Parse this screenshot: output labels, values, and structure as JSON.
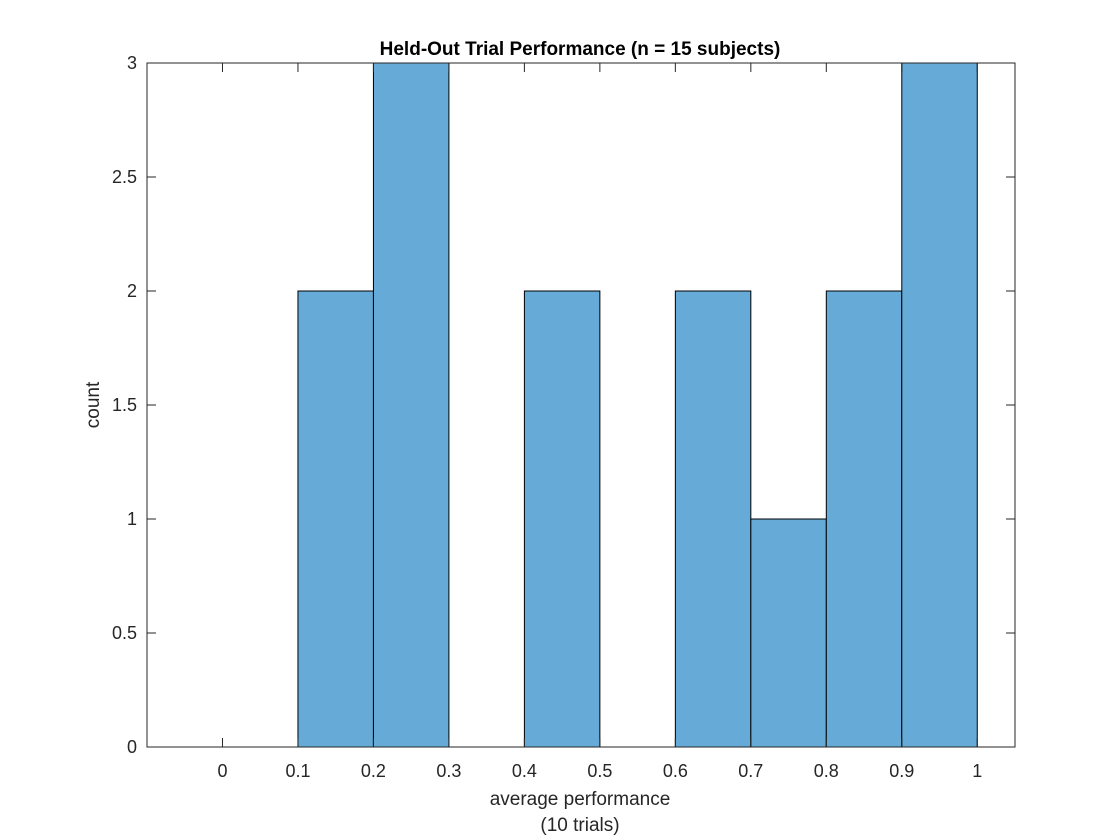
{
  "chart_data": {
    "type": "bar",
    "title": "Held-Out Trial Performance (n = 15 subjects)",
    "xlabel": [
      "average performance",
      "(10 trials)"
    ],
    "ylabel": "count",
    "bins": [
      {
        "from": 0.1,
        "to": 0.2,
        "count": 2
      },
      {
        "from": 0.2,
        "to": 0.3,
        "count": 3
      },
      {
        "from": 0.4,
        "to": 0.5,
        "count": 2
      },
      {
        "from": 0.6,
        "to": 0.7,
        "count": 2
      },
      {
        "from": 0.7,
        "to": 0.8,
        "count": 1
      },
      {
        "from": 0.8,
        "to": 0.9,
        "count": 2
      },
      {
        "from": 0.9,
        "to": 1.0,
        "count": 3
      }
    ],
    "xlim": [
      -0.1,
      1.05
    ],
    "ylim": [
      0,
      3
    ],
    "xticks": [
      0,
      0.1,
      0.2,
      0.3,
      0.4,
      0.5,
      0.6,
      0.7,
      0.8,
      0.9,
      1
    ],
    "xtick_labels": [
      "0",
      "0.1",
      "0.2",
      "0.3",
      "0.4",
      "0.5",
      "0.6",
      "0.7",
      "0.8",
      "0.9",
      "1"
    ],
    "yticks": [
      0,
      0.5,
      1,
      1.5,
      2,
      2.5,
      3
    ],
    "ytick_labels": [
      "0",
      "0.5",
      "1",
      "1.5",
      "2",
      "2.5",
      "3"
    ],
    "grid": false,
    "bar_color": "#66aad7",
    "edge_color": "#000000"
  }
}
